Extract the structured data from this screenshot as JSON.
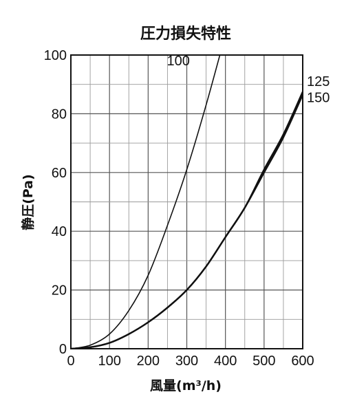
{
  "chart_data": {
    "type": "line",
    "title": "圧力損失特性",
    "xlabel": "風量(m³/h)",
    "ylabel": "静圧(Pa)",
    "xlim": [
      0,
      600
    ],
    "ylim": [
      0,
      100
    ],
    "xticks": [
      0,
      100,
      200,
      300,
      400,
      500,
      600
    ],
    "yticks": [
      0,
      20,
      40,
      60,
      80,
      100
    ],
    "grid": true,
    "series": [
      {
        "name": "100",
        "x": [
          0,
          50,
          100,
          150,
          200,
          250,
          300,
          350,
          400
        ],
        "y": [
          0,
          1.2,
          5,
          13,
          25,
          42,
          61,
          83,
          107
        ]
      },
      {
        "name": "125",
        "x": [
          0,
          50,
          100,
          150,
          200,
          250,
          300,
          350,
          400,
          450,
          500,
          550,
          600
        ],
        "y": [
          0,
          0.5,
          2,
          5,
          9,
          14,
          20,
          28,
          38,
          48,
          61,
          73,
          87.5
        ]
      },
      {
        "name": "150",
        "x": [
          0,
          50,
          100,
          150,
          200,
          250,
          300,
          350,
          400,
          450,
          500,
          550,
          600
        ],
        "y": [
          0,
          0.5,
          2,
          5,
          9,
          14,
          20,
          28,
          38,
          48,
          60,
          72,
          86.5
        ]
      }
    ]
  }
}
